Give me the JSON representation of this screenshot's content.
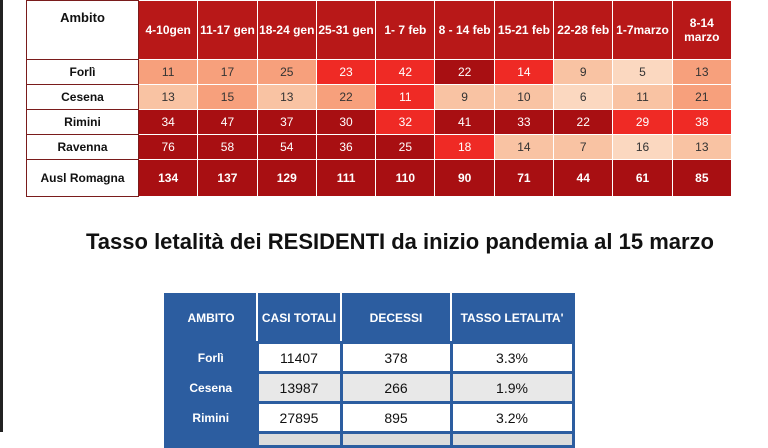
{
  "weekly_table": {
    "corner_label": "Ambito",
    "weeks": [
      "4-10gen",
      "11-17 gen",
      "18-24 gen",
      "25-31 gen",
      "1- 7 feb",
      "8 - 14 feb",
      "15-21 feb",
      "22-28 feb",
      "1-7marzo",
      "8-14 marzo"
    ],
    "rows": [
      {
        "name": "Forlì",
        "values": [
          "11",
          "17",
          "25",
          "23",
          "42",
          "22",
          "14",
          "9",
          "5",
          "13"
        ],
        "colors": [
          "#f7a07c",
          "#f7a07c",
          "#f7a07c",
          "#ef2a25",
          "#ef2a25",
          "#a80f12",
          "#ef2a25",
          "#f9c3a3",
          "#fbd8c0",
          "#f7a07c"
        ]
      },
      {
        "name": "Cesena",
        "values": [
          "13",
          "15",
          "13",
          "22",
          "11",
          "9",
          "10",
          "6",
          "11",
          "21"
        ],
        "colors": [
          "#f9c3a3",
          "#f7a07c",
          "#f9c3a3",
          "#f7a07c",
          "#ef2a25",
          "#f9c3a3",
          "#f9c3a3",
          "#fbd8c0",
          "#f9c3a3",
          "#f7a07c"
        ]
      },
      {
        "name": "Rimini",
        "values": [
          "34",
          "47",
          "37",
          "30",
          "32",
          "41",
          "33",
          "22",
          "29",
          "38"
        ],
        "colors": [
          "#a80f12",
          "#a80f12",
          "#a80f12",
          "#a80f12",
          "#ef2a25",
          "#a80f12",
          "#a80f12",
          "#a80f12",
          "#ef2a25",
          "#ef2a25"
        ]
      },
      {
        "name": "Ravenna",
        "values": [
          "76",
          "58",
          "54",
          "36",
          "25",
          "18",
          "14",
          "7",
          "16",
          "13"
        ],
        "colors": [
          "#a80f12",
          "#a80f12",
          "#a80f12",
          "#a80f12",
          "#a80f12",
          "#ef2a25",
          "#f9c3a3",
          "#f9c3a3",
          "#fbd8c0",
          "#f9c3a3"
        ]
      },
      {
        "name": "Ausl Romagna",
        "values": [
          "134",
          "137",
          "129",
          "111",
          "110",
          "90",
          "71",
          "44",
          "61",
          "85"
        ],
        "colors": [
          "#a80f12",
          "#a80f12",
          "#a80f12",
          "#a80f12",
          "#a80f12",
          "#a80f12",
          "#a80f12",
          "#a80f12",
          "#a80f12",
          "#a80f12"
        ],
        "total": true
      }
    ],
    "text_colors": {
      "light": "#333333",
      "dark": "#ffffff"
    }
  },
  "section_title": "Tasso letalità dei RESIDENTI  da inizio pandemia al 15 marzo",
  "lethality_table": {
    "headers": [
      "AMBITO",
      "CASI TOTALI",
      "DECESSI",
      "TASSO LETALITA'"
    ],
    "rows": [
      {
        "ambito": "Forlì",
        "casi": "11407",
        "decessi": "378",
        "tasso": "3.3%"
      },
      {
        "ambito": "Cesena",
        "casi": "13987",
        "decessi": "266",
        "tasso": "1.9%"
      },
      {
        "ambito": "Rimini",
        "casi": "27895",
        "decessi": "895",
        "tasso": "3.2%"
      }
    ]
  },
  "colors": {
    "header_red": "#b81818",
    "table_blue": "#2c5da0"
  }
}
